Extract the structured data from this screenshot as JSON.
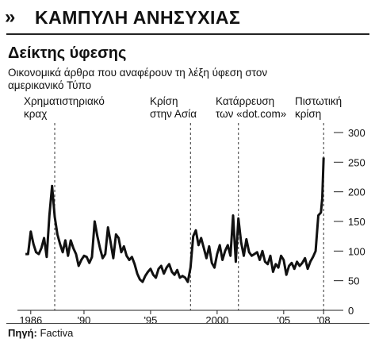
{
  "header": {
    "chevrons": "»",
    "title": "ΚΑΜΠΥΛΗ ΑΝΗΣΥΧΙΑΣ"
  },
  "chart_data": {
    "type": "line",
    "title": "Δείκτης ύφεσης",
    "subtitle": "Οικονομικά άρθρα που αναφέρουν τη λέξη ύφεση στον αμερικανικό Τύπο",
    "xlabel": "",
    "ylabel": "",
    "xlim": [
      1985.0,
      2009.0
    ],
    "ylim": [
      0,
      300
    ],
    "y_ticks": [
      0,
      50,
      100,
      150,
      200,
      250,
      300
    ],
    "x_ticks": [
      {
        "value": 1986.0,
        "label": "1986"
      },
      {
        "value": 1990.0,
        "label": "'90"
      },
      {
        "value": 1995.0,
        "label": "'95"
      },
      {
        "value": 2000.0,
        "label": "2000"
      },
      {
        "value": 2005.0,
        "label": "'05"
      },
      {
        "value": 2008.0,
        "label": "'08"
      }
    ],
    "grid": false,
    "annotations": [
      {
        "x": 1987.8,
        "label": "Χρηματιστηριακό\nκραχ"
      },
      {
        "x": 1998.0,
        "label": "Κρίση\nστην Ασία"
      },
      {
        "x": 2001.6,
        "label": "Κατάρρευση\nτων «dot.com»"
      },
      {
        "x": 2008.0,
        "label": "Πιστωτική\nκρίση"
      }
    ],
    "series": [
      {
        "name": "",
        "x": [
          1985.6,
          1985.8,
          1986.0,
          1986.2,
          1986.4,
          1986.6,
          1986.8,
          1987.0,
          1987.2,
          1987.4,
          1987.6,
          1987.8,
          1988.0,
          1988.2,
          1988.4,
          1988.6,
          1988.8,
          1989.0,
          1989.2,
          1989.4,
          1989.6,
          1989.8,
          1990.0,
          1990.2,
          1990.4,
          1990.6,
          1990.8,
          1991.0,
          1991.2,
          1991.4,
          1991.6,
          1991.8,
          1992.0,
          1992.2,
          1992.4,
          1992.6,
          1992.8,
          1993.0,
          1993.2,
          1993.4,
          1993.6,
          1993.8,
          1994.0,
          1994.2,
          1994.4,
          1994.6,
          1994.8,
          1995.0,
          1995.2,
          1995.4,
          1995.6,
          1995.8,
          1996.0,
          1996.2,
          1996.4,
          1996.6,
          1996.8,
          1997.0,
          1997.2,
          1997.4,
          1997.6,
          1997.8,
          1998.0,
          1998.2,
          1998.4,
          1998.6,
          1998.8,
          1999.0,
          1999.2,
          1999.4,
          1999.6,
          1999.8,
          2000.0,
          2000.2,
          2000.4,
          2000.6,
          2000.8,
          2001.0,
          2001.2,
          2001.4,
          2001.6,
          2001.8,
          2002.0,
          2002.2,
          2002.4,
          2002.6,
          2002.8,
          2003.0,
          2003.2,
          2003.4,
          2003.6,
          2003.8,
          2004.0,
          2004.2,
          2004.4,
          2004.6,
          2004.8,
          2005.0,
          2005.2,
          2005.4,
          2005.6,
          2005.8,
          2006.0,
          2006.2,
          2006.4,
          2006.6,
          2006.8,
          2007.0,
          2007.2,
          2007.4,
          2007.6,
          2007.8,
          2007.9,
          2008.0
        ],
        "values": [
          95,
          95,
          133,
          112,
          98,
          95,
          105,
          122,
          90,
          160,
          210,
          158,
          128,
          112,
          98,
          118,
          92,
          118,
          105,
          95,
          75,
          85,
          92,
          90,
          80,
          90,
          150,
          125,
          105,
          88,
          95,
          140,
          115,
          88,
          128,
          122,
          98,
          108,
          92,
          85,
          90,
          78,
          62,
          52,
          48,
          58,
          65,
          70,
          60,
          55,
          70,
          75,
          62,
          72,
          78,
          65,
          60,
          68,
          55,
          58,
          55,
          48,
          72,
          125,
          135,
          110,
          122,
          105,
          88,
          108,
          80,
          72,
          95,
          110,
          85,
          100,
          110,
          92,
          160,
          82,
          155,
          115,
          92,
          120,
          98,
          92,
          95,
          98,
          85,
          100,
          82,
          78,
          92,
          65,
          78,
          72,
          92,
          85,
          60,
          75,
          80,
          70,
          82,
          75,
          80,
          88,
          70,
          82,
          90,
          100,
          160,
          165,
          190,
          258
        ]
      }
    ],
    "source_label": "Πηγή:",
    "source": "Factiva"
  }
}
